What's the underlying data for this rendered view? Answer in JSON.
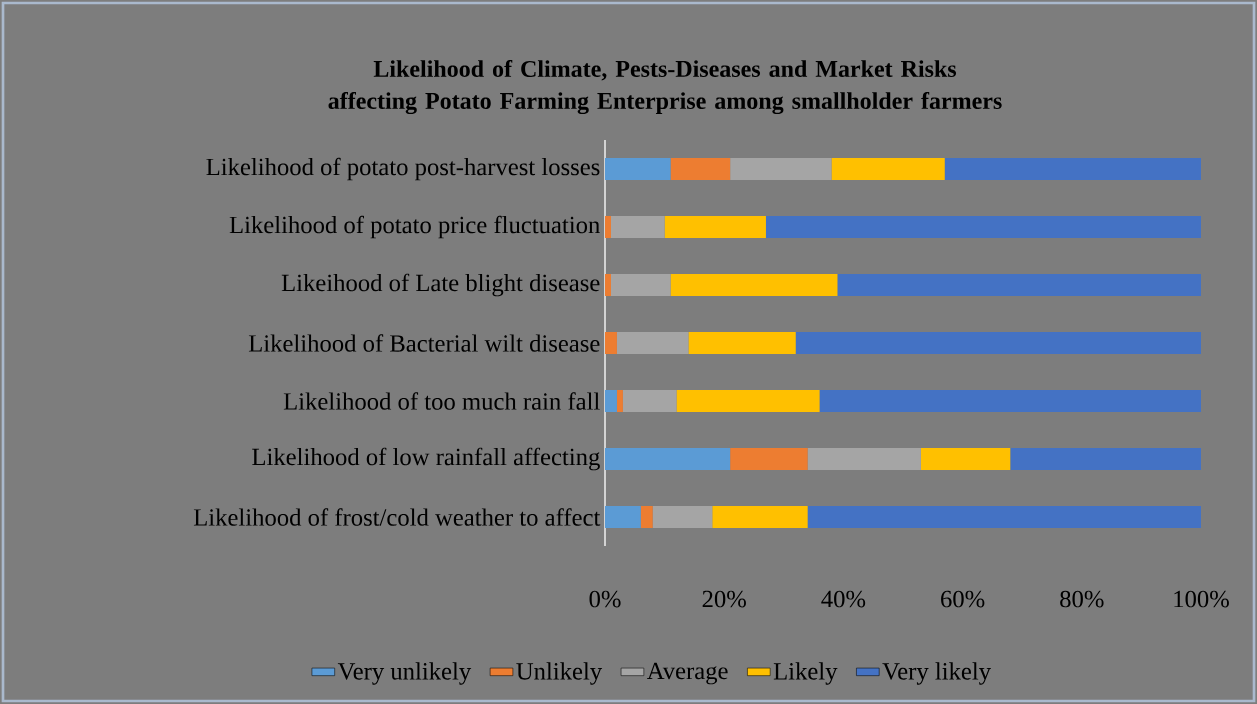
{
  "chart_data": {
    "type": "bar",
    "orientation": "horizontal",
    "stacked": true,
    "title": "Likelihood of Climate, Pests-Diseases and Market Risks affecting Potato Farming Enterprise among smallholder farmers",
    "categories": [
      "Likelihood of potato post-harvest losses",
      "Likelihood of potato price fluctuation",
      "Likeihood of Late blight disease",
      "Likelihood of Bacterial wilt disease",
      "Likelihood of too much rain fall",
      "Likelihood of low rainfall affecting",
      "Likelihood of frost/cold weather to affect"
    ],
    "series": [
      {
        "name": "Very unlikely",
        "color": "#5b9bd5",
        "values": [
          11,
          0,
          0,
          0,
          2,
          21,
          6
        ]
      },
      {
        "name": "Unlikely",
        "color": "#ed7d31",
        "values": [
          10,
          1,
          1,
          2,
          1,
          13,
          2
        ]
      },
      {
        "name": "Average",
        "color": "#a5a5a5",
        "values": [
          17,
          9,
          10,
          12,
          9,
          19,
          10
        ]
      },
      {
        "name": "Likely",
        "color": "#ffc000",
        "values": [
          19,
          17,
          28,
          18,
          24,
          15,
          16
        ]
      },
      {
        "name": "Very likely",
        "color": "#4472c4",
        "values": [
          43,
          73,
          61,
          68,
          64,
          32,
          66
        ]
      }
    ],
    "xlim": [
      0,
      100
    ],
    "xticks": [
      {
        "value": 0,
        "label": "0%"
      },
      {
        "value": 20,
        "label": "20%"
      },
      {
        "value": 40,
        "label": "40%"
      },
      {
        "value": 60,
        "label": "60%"
      },
      {
        "value": 80,
        "label": "80%"
      },
      {
        "value": 100,
        "label": "100%"
      }
    ],
    "legend": "bottom"
  }
}
